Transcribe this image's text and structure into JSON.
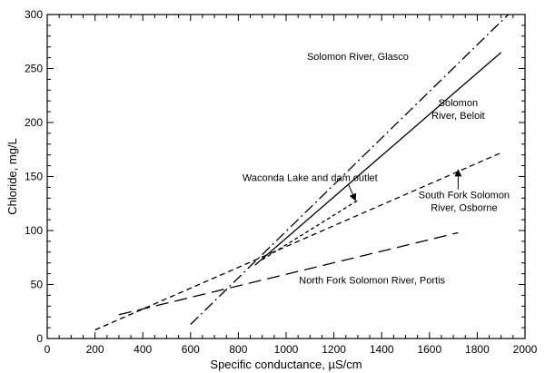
{
  "chart_data": {
    "type": "line",
    "title": "",
    "xlabel": "Specific conductance, µS/cm",
    "ylabel": "Chloride, mg/L",
    "xlim": [
      0,
      2000
    ],
    "ylim": [
      0,
      300
    ],
    "xticks": [
      0,
      200,
      400,
      600,
      800,
      1000,
      1200,
      1400,
      1600,
      1800,
      2000
    ],
    "yticks": [
      0,
      50,
      100,
      150,
      200,
      250,
      300
    ],
    "grid": false,
    "legend": "none (series labeled directly on plot)",
    "series": [
      {
        "name": "Solomon River, Glasco",
        "line_style": "dash-dot",
        "x": [
          600,
          1930
        ],
        "y": [
          13,
          300
        ],
        "label_lines": [
          "Solomon River, Glasco"
        ],
        "label_at": [
          1300,
          258
        ]
      },
      {
        "name": "Solomon River, Beloit",
        "line_style": "solid",
        "x": [
          870,
          1900
        ],
        "y": [
          68,
          265
        ],
        "label_lines": [
          "Solomon",
          "River, Beloit"
        ],
        "label_at": [
          1720,
          215
        ]
      },
      {
        "name": "Waconda Lake and dam outlet",
        "line_style": "short-dash",
        "x": [
          900,
          1300
        ],
        "y": [
          73,
          128
        ],
        "label_lines": [
          "Waconda Lake and dam outlet"
        ],
        "label_at": [
          1100,
          146
        ],
        "arrow": {
          "from": [
            1260,
            143
          ],
          "to": [
            1290,
            128
          ]
        }
      },
      {
        "name": "South Fork Solomon River, Osborne",
        "line_style": "dash",
        "x": [
          200,
          1900
        ],
        "y": [
          8,
          172
        ],
        "label_lines": [
          "South Fork Solomon",
          "River, Osborne"
        ],
        "label_at": [
          1745,
          130
        ],
        "arrow": {
          "from": [
            1720,
            138
          ],
          "to": [
            1720,
            156
          ]
        }
      },
      {
        "name": "North Fork Solomon River, Portis",
        "line_style": "long-dash",
        "x": [
          300,
          1720
        ],
        "y": [
          22,
          98
        ],
        "label_lines": [
          "North Fork Solomon River, Portis"
        ],
        "label_at": [
          1360,
          51
        ]
      }
    ]
  }
}
